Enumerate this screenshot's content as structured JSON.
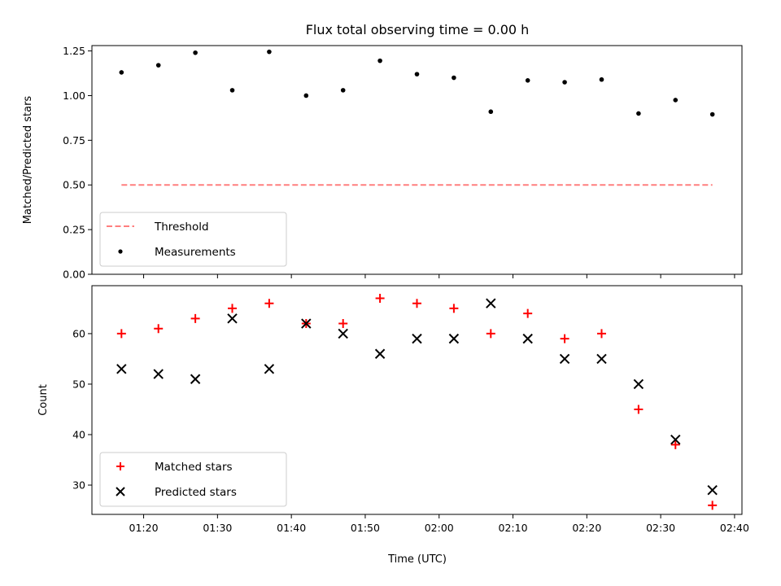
{
  "chart_data": [
    {
      "type": "scatter",
      "title": "Flux total observing time = 0.00 h",
      "xlabel": "",
      "ylabel": "Matched/Predicted stars",
      "xlim": [
        "01:13",
        "02:41"
      ],
      "ylim": [
        0,
        1.28
      ],
      "yticks": [
        0.0,
        0.25,
        0.5,
        0.75,
        1.0,
        1.25
      ],
      "ytick_labels": [
        "0.00",
        "0.25",
        "0.50",
        "0.75",
        "1.00",
        "1.25"
      ],
      "xticks": [
        "01:20",
        "01:30",
        "01:40",
        "01:50",
        "02:00",
        "02:10",
        "02:20",
        "02:30",
        "02:40"
      ],
      "show_xtick_labels": false,
      "grid": false,
      "legend_position": "lower-left",
      "series": [
        {
          "name": "Threshold",
          "kind": "dashed-line",
          "color": "#ff7f7f",
          "x": [
            "01:17",
            "02:37"
          ],
          "y": [
            0.5,
            0.5
          ]
        },
        {
          "name": "Measurements",
          "kind": "dot",
          "color": "#000000",
          "x": [
            "01:17",
            "01:22",
            "01:27",
            "01:32",
            "01:37",
            "01:42",
            "01:47",
            "01:52",
            "01:57",
            "02:02",
            "02:07",
            "02:12",
            "02:17",
            "02:22",
            "02:27",
            "02:32",
            "02:37"
          ],
          "y": [
            1.13,
            1.17,
            1.24,
            1.03,
            1.245,
            1.0,
            1.03,
            1.195,
            1.12,
            1.1,
            0.91,
            1.085,
            1.075,
            1.09,
            0.9,
            0.975,
            0.895
          ]
        }
      ]
    },
    {
      "type": "scatter",
      "title": "",
      "xlabel": "Time (UTC)",
      "ylabel": "Count",
      "xlim": [
        "01:13",
        "02:41"
      ],
      "ylim": [
        24.2,
        69.5
      ],
      "yticks": [
        30,
        40,
        50,
        60
      ],
      "ytick_labels": [
        "30",
        "40",
        "50",
        "60"
      ],
      "xticks": [
        "01:20",
        "01:30",
        "01:40",
        "01:50",
        "02:00",
        "02:10",
        "02:20",
        "02:30",
        "02:40"
      ],
      "show_xtick_labels": true,
      "grid": false,
      "legend_position": "lower-left",
      "series": [
        {
          "name": "Matched stars",
          "kind": "plus",
          "color": "#ff0000",
          "x": [
            "01:17",
            "01:22",
            "01:27",
            "01:32",
            "01:37",
            "01:42",
            "01:47",
            "01:52",
            "01:57",
            "02:02",
            "02:07",
            "02:12",
            "02:17",
            "02:22",
            "02:27",
            "02:32",
            "02:37"
          ],
          "y": [
            60,
            61,
            63,
            65,
            66,
            62,
            62,
            67,
            66,
            65,
            60,
            64,
            59,
            60,
            45,
            38,
            26
          ]
        },
        {
          "name": "Predicted stars",
          "kind": "cross",
          "color": "#000000",
          "x": [
            "01:17",
            "01:22",
            "01:27",
            "01:32",
            "01:37",
            "01:42",
            "01:47",
            "01:52",
            "01:57",
            "02:02",
            "02:07",
            "02:12",
            "02:17",
            "02:22",
            "02:27",
            "02:32",
            "02:37"
          ],
          "y": [
            53,
            52,
            51,
            63,
            53,
            62,
            60,
            56,
            59,
            59,
            66,
            59,
            55,
            55,
            50,
            39,
            29
          ]
        }
      ]
    }
  ]
}
